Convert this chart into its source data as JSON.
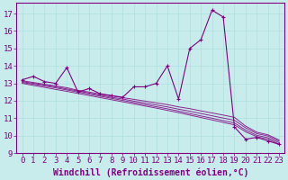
{
  "xlabel": "Windchill (Refroidissement éolien,°C)",
  "xlim_min": -0.5,
  "xlim_max": 23.5,
  "ylim_min": 9.0,
  "ylim_max": 17.6,
  "yticks": [
    9,
    10,
    11,
    12,
    13,
    14,
    15,
    16,
    17
  ],
  "xticks": [
    0,
    1,
    2,
    3,
    4,
    5,
    6,
    7,
    8,
    9,
    10,
    11,
    12,
    13,
    14,
    15,
    16,
    17,
    18,
    19,
    20,
    21,
    22,
    23
  ],
  "bg_color": "#c8ecec",
  "line_color": "#800080",
  "grid_color": "#b0dede",
  "main_series": [
    13.2,
    13.4,
    13.1,
    13.0,
    13.9,
    12.5,
    12.7,
    12.4,
    12.3,
    12.2,
    12.8,
    12.8,
    13.0,
    14.0,
    12.1,
    15.0,
    15.5,
    17.2,
    16.8,
    10.5,
    9.8,
    9.9,
    9.7,
    9.5
  ],
  "trend_lines": [
    [
      13.15,
      13.05,
      12.95,
      12.85,
      12.75,
      12.6,
      12.5,
      12.38,
      12.28,
      12.18,
      12.08,
      11.98,
      11.88,
      11.78,
      11.65,
      11.55,
      11.42,
      11.3,
      11.18,
      11.05,
      10.55,
      10.2,
      10.05,
      9.75
    ],
    [
      13.1,
      13.0,
      12.9,
      12.8,
      12.68,
      12.56,
      12.44,
      12.32,
      12.2,
      12.1,
      11.98,
      11.87,
      11.76,
      11.65,
      11.52,
      11.4,
      11.27,
      11.14,
      11.01,
      10.88,
      10.45,
      10.12,
      9.98,
      9.68
    ],
    [
      13.05,
      12.95,
      12.85,
      12.74,
      12.62,
      12.5,
      12.38,
      12.26,
      12.14,
      12.02,
      11.9,
      11.78,
      11.66,
      11.54,
      11.41,
      11.27,
      11.13,
      11.0,
      10.86,
      10.73,
      10.32,
      10.02,
      9.88,
      9.6
    ],
    [
      13.0,
      12.88,
      12.77,
      12.65,
      12.54,
      12.42,
      12.3,
      12.18,
      12.06,
      11.94,
      11.82,
      11.7,
      11.58,
      11.45,
      11.32,
      11.18,
      11.04,
      10.9,
      10.76,
      10.62,
      10.22,
      9.94,
      9.8,
      9.52
    ]
  ],
  "font_family": "monospace",
  "tick_fontsize": 6.5,
  "label_fontsize": 7,
  "marker": "+"
}
